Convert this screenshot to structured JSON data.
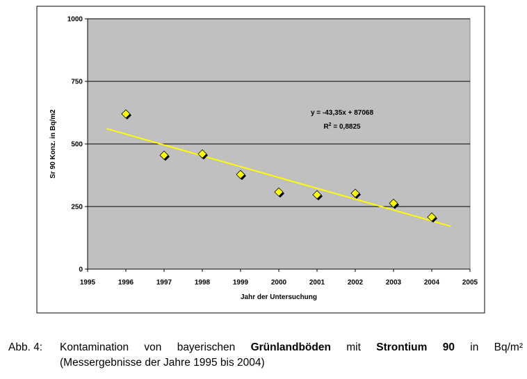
{
  "chart_data": {
    "type": "scatter",
    "title": "",
    "xlabel": "Jahr der Untersuchung",
    "ylabel": "Sr 90 Konz. in Bq/m2",
    "xlim": [
      1995,
      2005
    ],
    "ylim": [
      0,
      1000
    ],
    "x_ticks": [
      "1995",
      "1996",
      "1997",
      "1998",
      "1999",
      "2000",
      "2001",
      "2002",
      "2003",
      "2004",
      "2005"
    ],
    "y_ticks": [
      "0",
      "250",
      "500",
      "750",
      "1000"
    ],
    "grid": "horizontal",
    "series": [
      {
        "marker": "diamond",
        "color": "#ffff00",
        "x": [
          1996,
          1997,
          1998,
          1999,
          2000,
          2001,
          2002,
          2003,
          2004
        ],
        "y": [
          620,
          455,
          460,
          378,
          308,
          297,
          303,
          263,
          208
        ]
      }
    ],
    "trendline": {
      "color": "#ffff00",
      "x": [
        1995.5,
        2004.5
      ],
      "y": [
        561,
        171
      ],
      "equation": "y = -43,35x + 87068",
      "r2_prefix": "R",
      "r2_exp": "2",
      "r2_value": " = 0,8825"
    },
    "plot_background": "#c0c0c0"
  },
  "caption": {
    "label": "Abb. 4:",
    "line1_part1": "Kontamination von bayerischen ",
    "line1_bold1": "Grünlandböden",
    "line1_part2": " mit ",
    "line1_bold2": "Strontium 90",
    "line1_part3": " in Bq/m²",
    "line2": "(Messergebnisse der Jahre 1995 bis 2004)"
  }
}
